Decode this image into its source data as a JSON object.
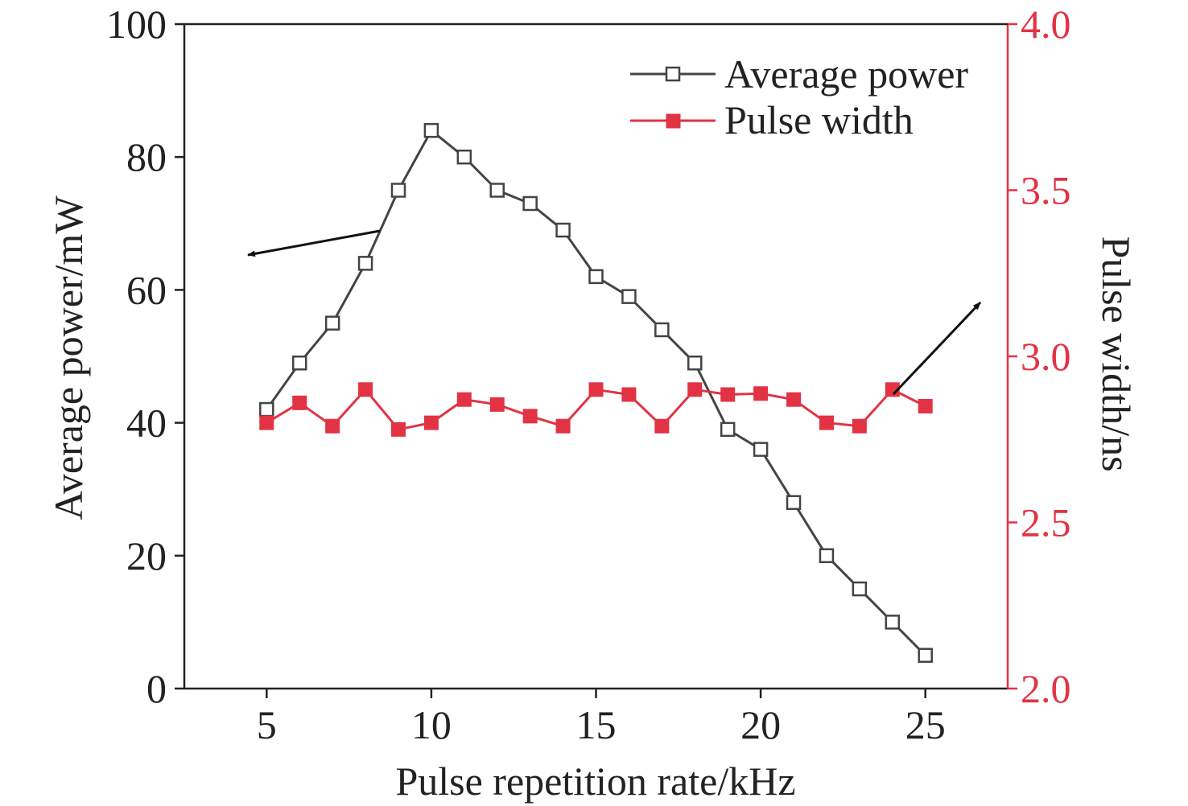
{
  "chart_data": {
    "type": "line",
    "xlabel": "Pulse repetition rate/kHz",
    "ylabel_left": "Average power/mW",
    "ylabel_right": "Pulse width/ns",
    "xlim": [
      2.5,
      27.5
    ],
    "xticks": [
      5,
      10,
      15,
      20,
      25
    ],
    "ylim_left": [
      0,
      100
    ],
    "yticks_left": [
      0,
      20,
      40,
      60,
      80,
      100
    ],
    "ylim_right": [
      2.0,
      4.0
    ],
    "yticks_right": [
      "2.0",
      "2.5",
      "3.0",
      "3.5",
      "4.0"
    ],
    "legend_position": "top-right",
    "x": [
      5,
      6,
      7,
      8,
      9,
      10,
      11,
      12,
      13,
      14,
      15,
      16,
      17,
      18,
      19,
      20,
      21,
      22,
      23,
      24,
      25
    ],
    "series": [
      {
        "name": "Average power",
        "axis": "left",
        "marker": "open-square",
        "color": "#444444",
        "values": [
          42,
          49,
          55,
          64,
          75,
          84,
          80,
          75,
          73,
          69,
          62,
          59,
          54,
          49,
          39,
          36,
          28,
          20,
          15,
          10,
          5
        ]
      },
      {
        "name": "Pulse width",
        "axis": "right",
        "marker": "filled-square",
        "color": "#e23344",
        "values": [
          2.8,
          2.86,
          2.79,
          2.9,
          2.78,
          2.8,
          2.87,
          2.855,
          2.82,
          2.79,
          2.9,
          2.885,
          2.79,
          2.9,
          2.885,
          2.888,
          2.87,
          2.8,
          2.79,
          2.9,
          2.85
        ]
      }
    ],
    "annotations": [
      {
        "type": "arrow",
        "points_to": "left axis",
        "series": "Average power"
      },
      {
        "type": "arrow",
        "points_to": "right axis",
        "series": "Pulse width"
      }
    ],
    "colors": {
      "left_axis": "#222222",
      "right_axis": "#e23344"
    }
  }
}
